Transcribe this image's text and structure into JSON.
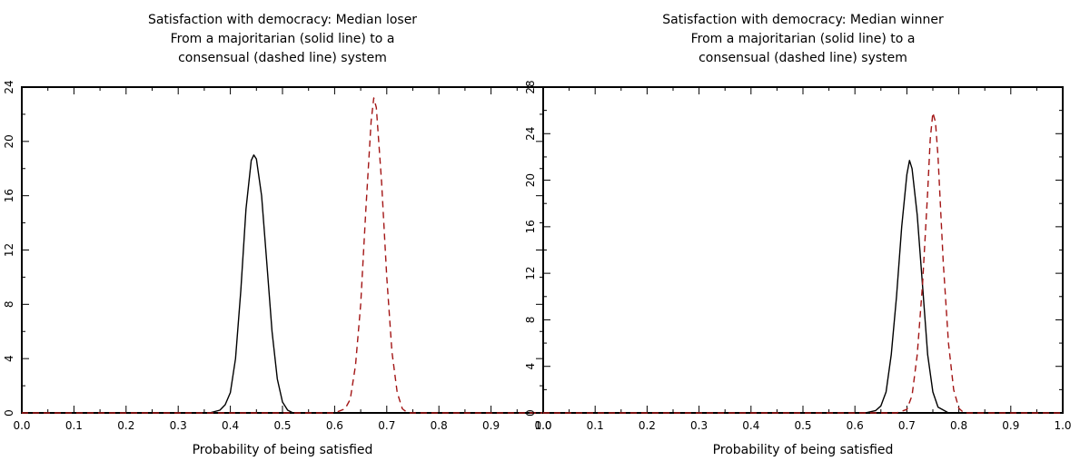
{
  "chart_data": [
    {
      "type": "line",
      "title_lines": [
        "Satisfaction with democracy: Median loser",
        "From a majoritarian (solid line) to a",
        "consensual (dashed line) system"
      ],
      "xlabel": "Probability of being satisfied",
      "ylabel": "",
      "xlim": [
        0.0,
        1.0
      ],
      "ylim": [
        0,
        24
      ],
      "xticks": [
        "0.0",
        "0.1",
        "0.2",
        "0.3",
        "0.4",
        "0.5",
        "0.6",
        "0.7",
        "0.8",
        "0.9",
        "1.0"
      ],
      "yticks": [
        "0",
        "4",
        "8",
        "12",
        "16",
        "20",
        "24"
      ],
      "grid": false,
      "series": [
        {
          "style": "solid",
          "color": "#000000",
          "x": [
            0.0,
            0.36,
            0.38,
            0.39,
            0.4,
            0.41,
            0.42,
            0.43,
            0.44,
            0.445,
            0.45,
            0.46,
            0.47,
            0.48,
            0.49,
            0.5,
            0.51,
            0.52,
            1.0
          ],
          "y": [
            0,
            0,
            0.2,
            0.6,
            1.5,
            4.0,
            9.0,
            15.0,
            18.6,
            19.0,
            18.7,
            16.0,
            11.0,
            6.0,
            2.5,
            0.8,
            0.2,
            0,
            0
          ]
        },
        {
          "style": "dashed",
          "color": "#a31515",
          "x": [
            0.0,
            0.6,
            0.62,
            0.63,
            0.64,
            0.65,
            0.66,
            0.67,
            0.675,
            0.68,
            0.69,
            0.7,
            0.71,
            0.72,
            0.73,
            0.74,
            1.0
          ],
          "y": [
            0,
            0,
            0.3,
            1.0,
            3.5,
            8.0,
            15.0,
            21.5,
            23.2,
            22.5,
            17.0,
            10.0,
            4.5,
            1.5,
            0.3,
            0,
            0
          ]
        }
      ]
    },
    {
      "type": "line",
      "title_lines": [
        "Satisfaction with democracy: Median winner",
        "From a majoritarian (solid line) to a",
        "consensual (dashed line) system"
      ],
      "xlabel": "Probability of being satisfied",
      "ylabel": "",
      "xlim": [
        0.0,
        1.0
      ],
      "ylim": [
        0,
        28
      ],
      "xticks": [
        "0.0",
        "0.1",
        "0.2",
        "0.3",
        "0.4",
        "0.5",
        "0.6",
        "0.7",
        "0.8",
        "0.9",
        "1.0"
      ],
      "yticks": [
        "0",
        "4",
        "8",
        "12",
        "16",
        "20",
        "24",
        "28"
      ],
      "grid": false,
      "series": [
        {
          "style": "solid",
          "color": "#000000",
          "x": [
            0.0,
            0.62,
            0.64,
            0.65,
            0.66,
            0.67,
            0.68,
            0.69,
            0.7,
            0.705,
            0.71,
            0.72,
            0.73,
            0.74,
            0.75,
            0.76,
            0.78,
            1.0
          ],
          "y": [
            0,
            0,
            0.2,
            0.6,
            1.8,
            5.0,
            10.0,
            16.0,
            20.5,
            21.7,
            21.0,
            17.0,
            11.0,
            5.0,
            1.8,
            0.5,
            0,
            0
          ]
        },
        {
          "style": "dashed",
          "color": "#a31515",
          "x": [
            0.0,
            0.68,
            0.7,
            0.71,
            0.72,
            0.73,
            0.74,
            0.745,
            0.75,
            0.755,
            0.76,
            0.77,
            0.78,
            0.79,
            0.8,
            0.81,
            1.0
          ],
          "y": [
            0,
            0,
            0.3,
            1.5,
            5.0,
            11.0,
            19.0,
            23.5,
            25.8,
            25.0,
            22.0,
            13.0,
            6.0,
            2.0,
            0.4,
            0,
            0
          ]
        }
      ]
    }
  ]
}
